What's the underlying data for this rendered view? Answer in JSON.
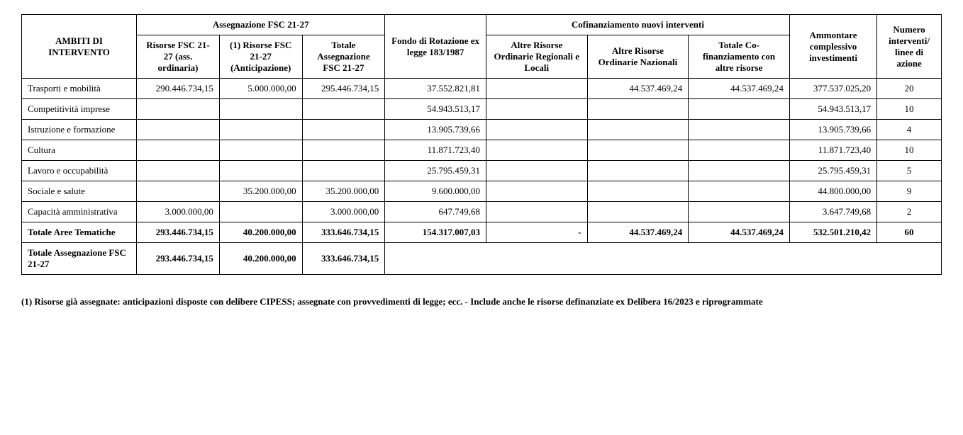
{
  "table": {
    "headers": {
      "ambiti": "AMBITI DI INTERVENTO",
      "assegnazione_group": "Assegnazione FSC 21-27",
      "risorse_fsc": "Risorse FSC 21-27 (ass. ordinaria)",
      "risorse_fsc_1": "(1) Risorse FSC 21-27 (Anticipazione)",
      "totale_assegnazione": "Totale Assegnazione FSC 21-27",
      "fondo": "Fondo di Rotazione ex legge 183/1987",
      "cofin_group": "Cofinanziamento nuovi interventi",
      "altre_risorse_reg": "Altre Risorse Ordinarie Regionali e Locali",
      "altre_risorse_naz": "Altre Risorse Ordinarie Nazionali",
      "totale_cofin": "Totale Co-finanziamento con altre risorse",
      "ammontare": "Ammontare complessivo investimenti",
      "numero": "Numero interventi/ linee di azione"
    },
    "rows": [
      {
        "label": "Trasporti e mobilità",
        "c1": "290.446.734,15",
        "c2": "5.000.000,00",
        "c3": "295.446.734,15",
        "c4": "37.552.821,81",
        "c5": "",
        "c6": "44.537.469,24",
        "c7": "44.537.469,24",
        "c8": "377.537.025,20",
        "c9": "20"
      },
      {
        "label": "Competitività imprese",
        "c1": "",
        "c2": "",
        "c3": "",
        "c4": "54.943.513,17",
        "c5": "",
        "c6": "",
        "c7": "",
        "c8": "54.943.513,17",
        "c9": "10"
      },
      {
        "label": "Istruzione e formazione",
        "c1": "",
        "c2": "",
        "c3": "",
        "c4": "13.905.739,66",
        "c5": "",
        "c6": "",
        "c7": "",
        "c8": "13.905.739,66",
        "c9": "4"
      },
      {
        "label": "Cultura",
        "c1": "",
        "c2": "",
        "c3": "",
        "c4": "11.871.723,40",
        "c5": "",
        "c6": "",
        "c7": "",
        "c8": "11.871.723,40",
        "c9": "10"
      },
      {
        "label": "Lavoro e occupabilità",
        "c1": "",
        "c2": "",
        "c3": "",
        "c4": "25.795.459,31",
        "c5": "",
        "c6": "",
        "c7": "",
        "c8": "25.795.459,31",
        "c9": "5"
      },
      {
        "label": "Sociale e salute",
        "c1": "",
        "c2": "35.200.000,00",
        "c3": "35.200.000,00",
        "c4": "9.600.000,00",
        "c5": "",
        "c6": "",
        "c7": "",
        "c8": "44.800.000,00",
        "c9": "9"
      },
      {
        "label": "Capacità amministrativa",
        "c1": "3.000.000,00",
        "c2": "",
        "c3": "3.000.000,00",
        "c4": "647.749,68",
        "c5": "",
        "c6": "",
        "c7": "",
        "c8": "3.647.749,68",
        "c9": "2"
      }
    ],
    "totals": {
      "aree": {
        "label": "Totale Aree Tematiche",
        "c1": "293.446.734,15",
        "c2": "40.200.000,00",
        "c3": "333.646.734,15",
        "c4": "154.317.007,03",
        "c5": "-",
        "c6": "44.537.469,24",
        "c7": "44.537.469,24",
        "c8": "532.501.210,42",
        "c9": "60"
      },
      "fsc": {
        "label": "Totale Assegnazione FSC 21-27",
        "c1": "293.446.734,15",
        "c2": "40.200.000,00",
        "c3": "333.646.734,15"
      }
    }
  },
  "footnote": "(1) Risorse già assegnate: anticipazioni disposte con delibere CIPESS; assegnate con provvedimenti di legge; ecc.  - Include anche le risorse definanziate ex Delibera 16/2023 e riprogrammate"
}
